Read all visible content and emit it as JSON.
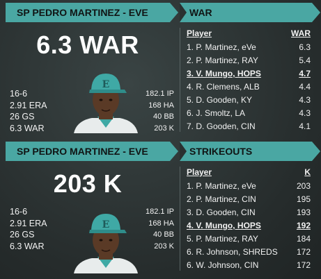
{
  "panel1": {
    "title": "SP PEDRO MARTINEZ - EVE",
    "headline": "6.3 WAR",
    "left_stats": [
      "16-6",
      "2.91 ERA",
      "26 GS",
      "6.3 WAR"
    ],
    "right_stats": [
      "182.1 IP",
      "168 HA",
      "40 BB",
      "203 K"
    ]
  },
  "leader1": {
    "title": "WAR",
    "col_player": "Player",
    "col_value": "WAR",
    "rows": [
      {
        "player": "1. P. Martinez, eVe",
        "value": "6.3",
        "highlight": false
      },
      {
        "player": "2. P. Martinez, RAY",
        "value": "5.4",
        "highlight": false
      },
      {
        "player": "3. V. Mungo, HOPS",
        "value": "4.7",
        "highlight": true
      },
      {
        "player": "4. R. Clemens, ALB",
        "value": "4.4",
        "highlight": false
      },
      {
        "player": "5. D. Gooden, KY",
        "value": "4.3",
        "highlight": false
      },
      {
        "player": "6. J. Smoltz, LA",
        "value": "4.3",
        "highlight": false
      },
      {
        "player": "7. D. Gooden, CIN",
        "value": "4.1",
        "highlight": false
      }
    ]
  },
  "panel2": {
    "title": "SP PEDRO MARTINEZ - EVE",
    "headline": "203 K",
    "left_stats": [
      "16-6",
      "2.91 ERA",
      "26 GS",
      "6.3 WAR"
    ],
    "right_stats": [
      "182.1 IP",
      "168 HA",
      "40 BB",
      "203 K"
    ]
  },
  "leader2": {
    "title": "STRIKEOUTS",
    "col_player": "Player",
    "col_value": "K",
    "rows": [
      {
        "player": "1. P. Martinez, eVe",
        "value": "203",
        "highlight": false
      },
      {
        "player": "2. P. Martinez, CIN",
        "value": "195",
        "highlight": false
      },
      {
        "player": "3. D. Gooden, CIN",
        "value": "193",
        "highlight": false
      },
      {
        "player": "4. V. Mungo, HOPS",
        "value": "192",
        "highlight": true
      },
      {
        "player": "5. P. Martinez, RAY",
        "value": "184",
        "highlight": false
      },
      {
        "player": "6. R. Johnson, SHREDS",
        "value": "172",
        "highlight": false
      },
      {
        "player": "6. W. Johnson, CIN",
        "value": "172",
        "highlight": false
      }
    ]
  },
  "colors": {
    "accent": "#4aa7a3",
    "cap": "#3fa9a5",
    "skin": "#5a3a26"
  },
  "icons": {
    "player_portrait": "player-portrait-icon"
  }
}
